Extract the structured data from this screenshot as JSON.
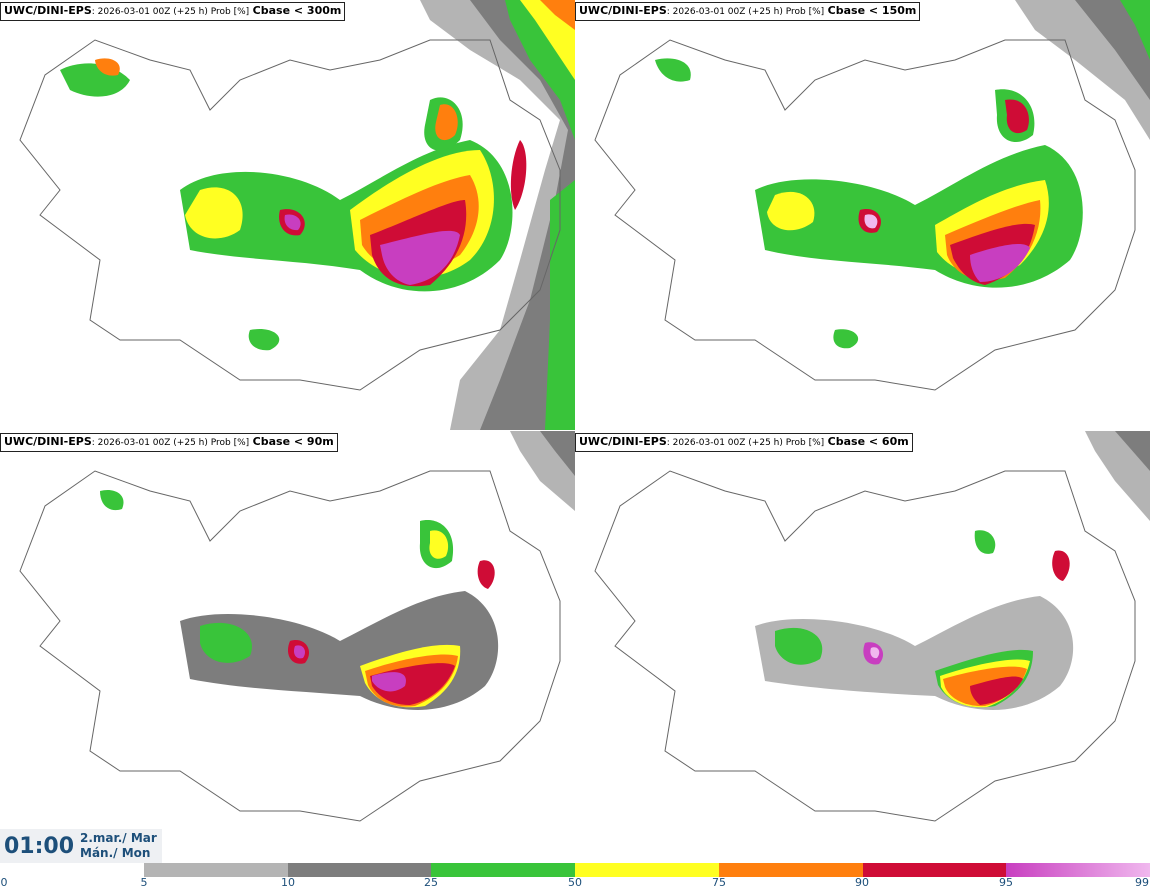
{
  "panels": [
    {
      "model": "UWC/DINI-EPS",
      "meta": ": 2026-03-01 00Z (+25 h) Prob [%]",
      "param": "Cbase < 300m"
    },
    {
      "model": "UWC/DINI-EPS",
      "meta": ": 2026-03-01 00Z (+25 h) Prob [%]",
      "param": "Cbase < 150m"
    },
    {
      "model": "UWC/DINI-EPS",
      "meta": ": 2026-03-01 00Z (+25 h) Prob [%]",
      "param": "Cbase < 90m"
    },
    {
      "model": "UWC/DINI-EPS",
      "meta": ": 2026-03-01 00Z (+25 h) Prob [%]",
      "param": "Cbase < 60m"
    }
  ],
  "valid_time": {
    "time": "01:00",
    "date_line1": "2.mar./ Mar",
    "date_line2": "Mán./ Mon"
  },
  "legend": {
    "ticks": [
      "0",
      "5",
      "10",
      "25",
      "50",
      "75",
      "90",
      "95",
      "99"
    ],
    "colors": [
      "#b4b4b4",
      "#7d7d7d",
      "#39c43a",
      "#ffff22",
      "#ff7f0e",
      "#cf0c36",
      "#c83ec0",
      "#f0b8ee"
    ]
  },
  "palette": {
    "light_gray": "#b4b4b4",
    "dark_gray": "#7d7d7d",
    "green": "#39c43a",
    "yellow": "#ffff22",
    "orange": "#ff7f0e",
    "red": "#cf0c36",
    "magenta": "#c83ec0",
    "pink": "#f0b8ee"
  }
}
